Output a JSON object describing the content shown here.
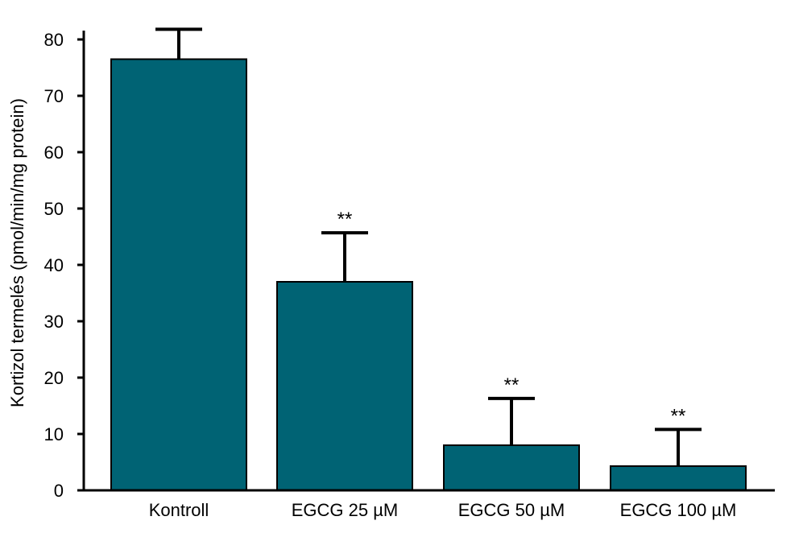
{
  "chart_data": {
    "type": "bar",
    "title": "",
    "xlabel": "",
    "ylabel": "Kortizol termelés (pmol/min/mg protein)",
    "categories": [
      "Kontroll",
      "EGCG 25 µM",
      "EGCG 50 µM",
      "EGCG 100 µM"
    ],
    "values": [
      76.5,
      37,
      8,
      4.3
    ],
    "error_plus": [
      5.3,
      8.7,
      8.3,
      6.5
    ],
    "significance": [
      "",
      "**",
      "**",
      "**"
    ],
    "ylim": [
      0,
      80
    ],
    "yticks": [
      0,
      10,
      20,
      30,
      40,
      50,
      60,
      70,
      80
    ],
    "bar_color": "#006374",
    "grid": false,
    "legend": "none"
  }
}
